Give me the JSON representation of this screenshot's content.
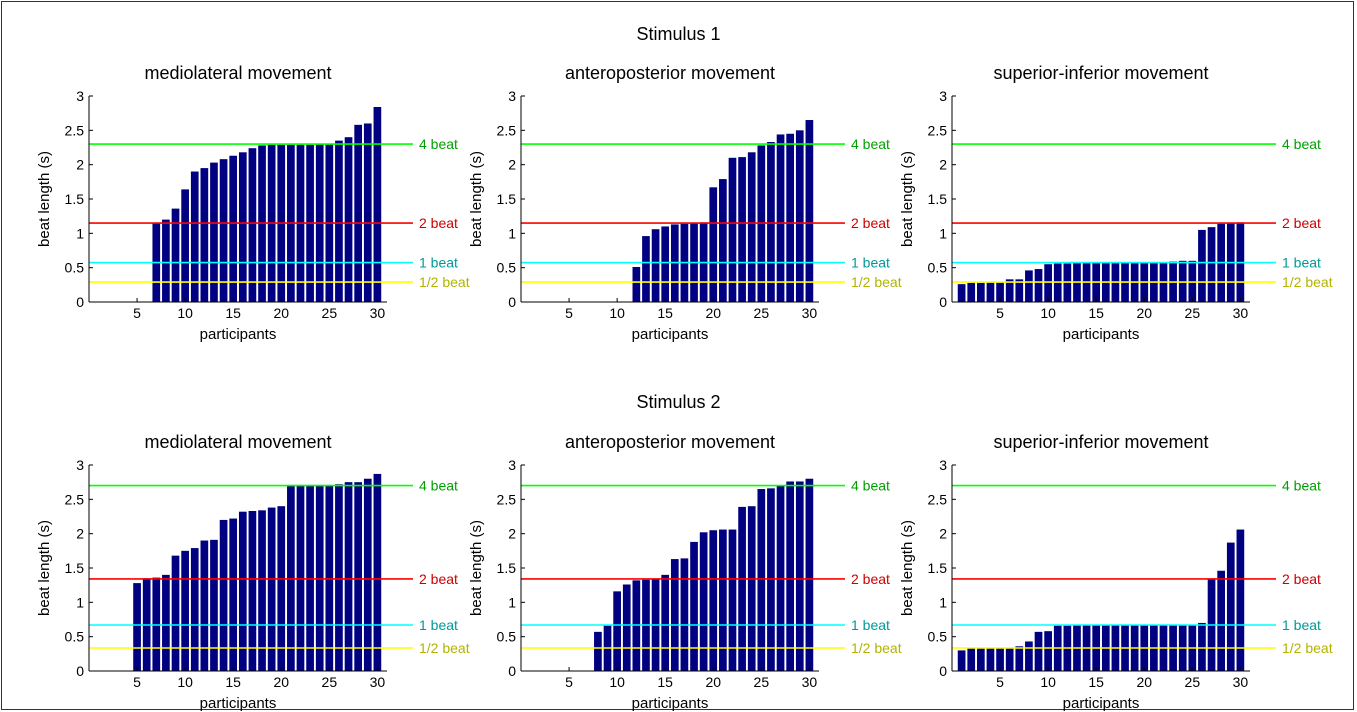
{
  "stimuli": [
    {
      "title": "Stimulus 1",
      "ref_values": [
        0.29,
        0.575,
        1.15,
        2.3
      ]
    },
    {
      "title": "Stimulus 2",
      "ref_values": [
        0.335,
        0.67,
        1.34,
        2.7
      ]
    }
  ],
  "ref_labels": [
    "1/2 beat",
    "1 beat",
    "2 beat",
    "4 beat"
  ],
  "ref_line_colors": [
    "#ffff00",
    "#00ffff",
    "#ff0000",
    "#00ff00"
  ],
  "ref_text_colors": [
    "#b3b300",
    "#009999",
    "#cc0000",
    "#00a000"
  ],
  "bar_color": "#000080",
  "chart_data": [
    {
      "type": "bar",
      "title": "mediolateral movement",
      "group": "Stimulus 1",
      "xlabel": "participants",
      "ylabel": "beat length (s)",
      "xlim": [
        0,
        31
      ],
      "ylim": [
        0,
        3
      ],
      "xticks": [
        5,
        10,
        15,
        20,
        25,
        30
      ],
      "yticks": [
        0,
        0.5,
        1,
        1.5,
        2,
        2.5,
        3
      ],
      "x": [
        7,
        8,
        9,
        10,
        11,
        12,
        13,
        14,
        15,
        16,
        17,
        18,
        19,
        20,
        21,
        22,
        23,
        24,
        25,
        26,
        27,
        28,
        29,
        30
      ],
      "values": [
        1.15,
        1.2,
        1.36,
        1.64,
        1.9,
        1.95,
        2.03,
        2.08,
        2.13,
        2.18,
        2.24,
        2.28,
        2.29,
        2.29,
        2.29,
        2.29,
        2.29,
        2.3,
        2.3,
        2.35,
        2.4,
        2.58,
        2.6,
        2.84
      ]
    },
    {
      "type": "bar",
      "title": "anteroposterior movement",
      "group": "Stimulus 1",
      "xlabel": "participants",
      "ylabel": "beat length (s)",
      "xlim": [
        0,
        31
      ],
      "ylim": [
        0,
        3
      ],
      "xticks": [
        5,
        10,
        15,
        20,
        25,
        30
      ],
      "yticks": [
        0,
        0.5,
        1,
        1.5,
        2,
        2.5,
        3
      ],
      "x": [
        12,
        13,
        14,
        15,
        16,
        17,
        18,
        19,
        20,
        21,
        22,
        23,
        24,
        25,
        26,
        27,
        28,
        29,
        30
      ],
      "values": [
        0.51,
        0.96,
        1.06,
        1.1,
        1.13,
        1.14,
        1.15,
        1.16,
        1.67,
        1.79,
        2.1,
        2.11,
        2.18,
        2.28,
        2.33,
        2.44,
        2.45,
        2.5,
        2.65
      ]
    },
    {
      "type": "bar",
      "title": "superior-inferior movement",
      "group": "Stimulus 1",
      "xlabel": "participants",
      "ylabel": "beat length (s)",
      "xlim": [
        0,
        31
      ],
      "ylim": [
        0,
        3
      ],
      "xticks": [
        5,
        10,
        15,
        20,
        25,
        30
      ],
      "yticks": [
        0,
        0.5,
        1,
        1.5,
        2,
        2.5,
        3
      ],
      "x": [
        1,
        2,
        3,
        4,
        5,
        6,
        7,
        8,
        9,
        10,
        11,
        12,
        13,
        14,
        15,
        16,
        17,
        18,
        19,
        20,
        21,
        22,
        23,
        24,
        25,
        26,
        27,
        28,
        29,
        30
      ],
      "values": [
        0.26,
        0.28,
        0.28,
        0.29,
        0.29,
        0.33,
        0.33,
        0.46,
        0.48,
        0.55,
        0.56,
        0.56,
        0.57,
        0.57,
        0.58,
        0.58,
        0.58,
        0.58,
        0.58,
        0.58,
        0.58,
        0.58,
        0.59,
        0.6,
        0.6,
        1.05,
        1.09,
        1.14,
        1.15,
        1.16
      ]
    },
    {
      "type": "bar",
      "title": "mediolateral movement",
      "group": "Stimulus 2",
      "xlabel": "participants",
      "ylabel": "beat length (s)",
      "xlim": [
        0,
        31
      ],
      "ylim": [
        0,
        3
      ],
      "xticks": [
        5,
        10,
        15,
        20,
        25,
        30
      ],
      "yticks": [
        0,
        0.5,
        1,
        1.5,
        2,
        2.5,
        3
      ],
      "x": [
        5,
        6,
        7,
        8,
        9,
        10,
        11,
        12,
        13,
        14,
        15,
        16,
        17,
        18,
        19,
        20,
        21,
        22,
        23,
        24,
        25,
        26,
        27,
        28,
        29,
        30
      ],
      "values": [
        1.28,
        1.35,
        1.36,
        1.4,
        1.68,
        1.75,
        1.79,
        1.9,
        1.91,
        2.2,
        2.22,
        2.32,
        2.33,
        2.34,
        2.38,
        2.4,
        2.71,
        2.71,
        2.71,
        2.71,
        2.71,
        2.72,
        2.75,
        2.75,
        2.8,
        2.87
      ]
    },
    {
      "type": "bar",
      "title": "anteroposterior movement",
      "group": "Stimulus 2",
      "xlabel": "participants",
      "ylabel": "beat length (s)",
      "xlim": [
        0,
        31
      ],
      "ylim": [
        0,
        3
      ],
      "xticks": [
        5,
        10,
        15,
        20,
        25,
        30
      ],
      "yticks": [
        0,
        0.5,
        1,
        1.5,
        2,
        2.5,
        3
      ],
      "x": [
        8,
        9,
        10,
        11,
        12,
        13,
        14,
        15,
        16,
        17,
        18,
        19,
        20,
        21,
        22,
        23,
        24,
        25,
        26,
        27,
        28,
        29,
        30
      ],
      "values": [
        0.57,
        0.66,
        1.16,
        1.26,
        1.32,
        1.33,
        1.34,
        1.4,
        1.63,
        1.64,
        1.88,
        2.02,
        2.05,
        2.06,
        2.06,
        2.39,
        2.4,
        2.65,
        2.66,
        2.7,
        2.76,
        2.76,
        2.8
      ]
    },
    {
      "type": "bar",
      "title": "superior-inferior movement",
      "group": "Stimulus 2",
      "xlabel": "participants",
      "ylabel": "beat length (s)",
      "xlim": [
        0,
        31
      ],
      "ylim": [
        0,
        3
      ],
      "xticks": [
        5,
        10,
        15,
        20,
        25,
        30
      ],
      "yticks": [
        0,
        0.5,
        1,
        1.5,
        2,
        2.5,
        3
      ],
      "x": [
        1,
        2,
        3,
        4,
        5,
        6,
        7,
        8,
        9,
        10,
        11,
        12,
        13,
        14,
        15,
        16,
        17,
        18,
        19,
        20,
        21,
        22,
        23,
        24,
        25,
        26,
        27,
        28,
        29,
        30
      ],
      "values": [
        0.3,
        0.33,
        0.33,
        0.33,
        0.33,
        0.34,
        0.36,
        0.43,
        0.57,
        0.58,
        0.66,
        0.66,
        0.67,
        0.67,
        0.67,
        0.67,
        0.67,
        0.67,
        0.67,
        0.67,
        0.67,
        0.67,
        0.67,
        0.67,
        0.67,
        0.7,
        1.34,
        1.46,
        1.87,
        2.06
      ]
    }
  ]
}
